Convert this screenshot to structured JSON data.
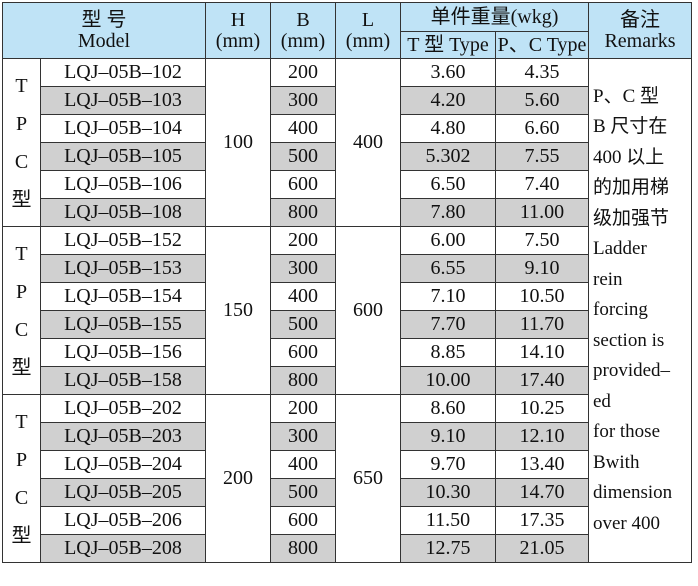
{
  "header": {
    "model_cn": "型  号",
    "model_en": "Model",
    "h": "H",
    "b": "B",
    "l": "L",
    "unit": "(mm)",
    "weight": "单件重量(wkg)",
    "t_type": "T 型 Type",
    "pc_type": "P、C Type",
    "remarks_cn": "备注",
    "remarks_en": "Remarks"
  },
  "groups": [
    {
      "labels": [
        "T",
        "P",
        "C",
        "型"
      ],
      "h": "100",
      "l": "400",
      "rows": [
        {
          "model": "LQJ–05B–102",
          "b": "200",
          "t": "3.60",
          "pc": "4.35"
        },
        {
          "model": "LQJ–05B–103",
          "b": "300",
          "t": "4.20",
          "pc": "5.60"
        },
        {
          "model": "LQJ–05B–104",
          "b": "400",
          "t": "4.80",
          "pc": "6.60"
        },
        {
          "model": "LQJ–05B–105",
          "b": "500",
          "t": "5.302",
          "pc": "7.55"
        },
        {
          "model": "LQJ–05B–106",
          "b": "600",
          "t": "6.50",
          "pc": "7.40"
        },
        {
          "model": "LQJ–05B–108",
          "b": "800",
          "t": "7.80",
          "pc": "11.00"
        }
      ]
    },
    {
      "labels": [
        "T",
        "P",
        "C",
        "型"
      ],
      "h": "150",
      "l": "600",
      "rows": [
        {
          "model": "LQJ–05B–152",
          "b": "200",
          "t": "6.00",
          "pc": "7.50"
        },
        {
          "model": "LQJ–05B–153",
          "b": "300",
          "t": "6.55",
          "pc": "9.10"
        },
        {
          "model": "LQJ–05B–154",
          "b": "400",
          "t": "7.10",
          "pc": "10.50"
        },
        {
          "model": "LQJ–05B–155",
          "b": "500",
          "t": "7.70",
          "pc": "11.70"
        },
        {
          "model": "LQJ–05B–156",
          "b": "600",
          "t": "8.85",
          "pc": "14.10"
        },
        {
          "model": "LQJ–05B–158",
          "b": "800",
          "t": "10.00",
          "pc": "17.40"
        }
      ]
    },
    {
      "labels": [
        "T",
        "P",
        "C",
        "型"
      ],
      "h": "200",
      "l": "650",
      "rows": [
        {
          "model": "LQJ–05B–202",
          "b": "200",
          "t": "8.60",
          "pc": "10.25"
        },
        {
          "model": "LQJ–05B–203",
          "b": "300",
          "t": "9.10",
          "pc": "12.10"
        },
        {
          "model": "LQJ–05B–204",
          "b": "400",
          "t": "9.70",
          "pc": "13.40"
        },
        {
          "model": "LQJ–05B–205",
          "b": "500",
          "t": "10.30",
          "pc": "14.70"
        },
        {
          "model": "LQJ–05B–206",
          "b": "600",
          "t": "11.50",
          "pc": "17.35"
        },
        {
          "model": "LQJ–05B–208",
          "b": "800",
          "t": "12.75",
          "pc": "21.05"
        }
      ]
    }
  ],
  "remarks": [
    "P、C 型",
    "B 尺寸在",
    "400 以上",
    "的加用梯",
    "级加强节",
    "Ladder",
    "rein",
    "forcing",
    "section is",
    "provided–",
    "ed",
    "for those",
    "Bwith",
    "dimension",
    "over 400"
  ]
}
